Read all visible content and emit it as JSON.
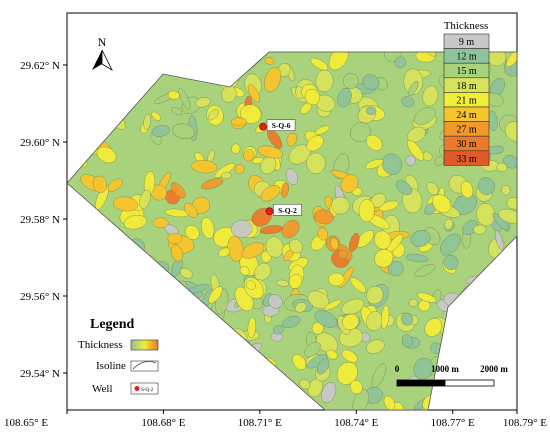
{
  "map": {
    "north_label": "N",
    "lat_ticks": [
      {
        "label": "29.62° N",
        "lat": 29.62
      },
      {
        "label": "29.60° N",
        "lat": 29.6
      },
      {
        "label": "29.58° N",
        "lat": 29.58
      },
      {
        "label": "29.56° N",
        "lat": 29.56
      },
      {
        "label": "29.54° N",
        "lat": 29.54
      }
    ],
    "lon_ticks": [
      {
        "label": "108.65° E",
        "lon": 108.65
      },
      {
        "label": "108.68° E",
        "lon": 108.68
      },
      {
        "label": "108.71° E",
        "lon": 108.71
      },
      {
        "label": "108.74° E",
        "lon": 108.74
      },
      {
        "label": "108.77° E",
        "lon": 108.77
      },
      {
        "label": "108.79° E",
        "lon": 108.79
      }
    ],
    "wells": [
      {
        "name": "S-Q-6",
        "lon": 108.711,
        "lat": 29.604
      },
      {
        "name": "S-Q-2",
        "lon": 108.713,
        "lat": 29.582
      }
    ],
    "color_scale": {
      "title": "Thickness",
      "classes": [
        {
          "label": "9 m",
          "color": "#c8c8c8"
        },
        {
          "label": "12 m",
          "color": "#8fc49a"
        },
        {
          "label": "15 m",
          "color": "#a9d27c"
        },
        {
          "label": "18 m",
          "color": "#d7e35c"
        },
        {
          "label": "21 m",
          "color": "#f2ec3a"
        },
        {
          "label": "24 m",
          "color": "#f6c52e"
        },
        {
          "label": "27 m",
          "color": "#f19a2c"
        },
        {
          "label": "30 m",
          "color": "#ec7a2a"
        },
        {
          "label": "33 m",
          "color": "#e25a26"
        }
      ]
    },
    "legend": {
      "title": "Legend",
      "thickness_label": "Thickness",
      "isoline_label": "Isoline",
      "well_label": "Well",
      "well_sample_text": "S-Q-2"
    },
    "scale_bar": {
      "zero_label": "0",
      "mid_label": "1000 m",
      "end_label": "2000 m"
    }
  }
}
